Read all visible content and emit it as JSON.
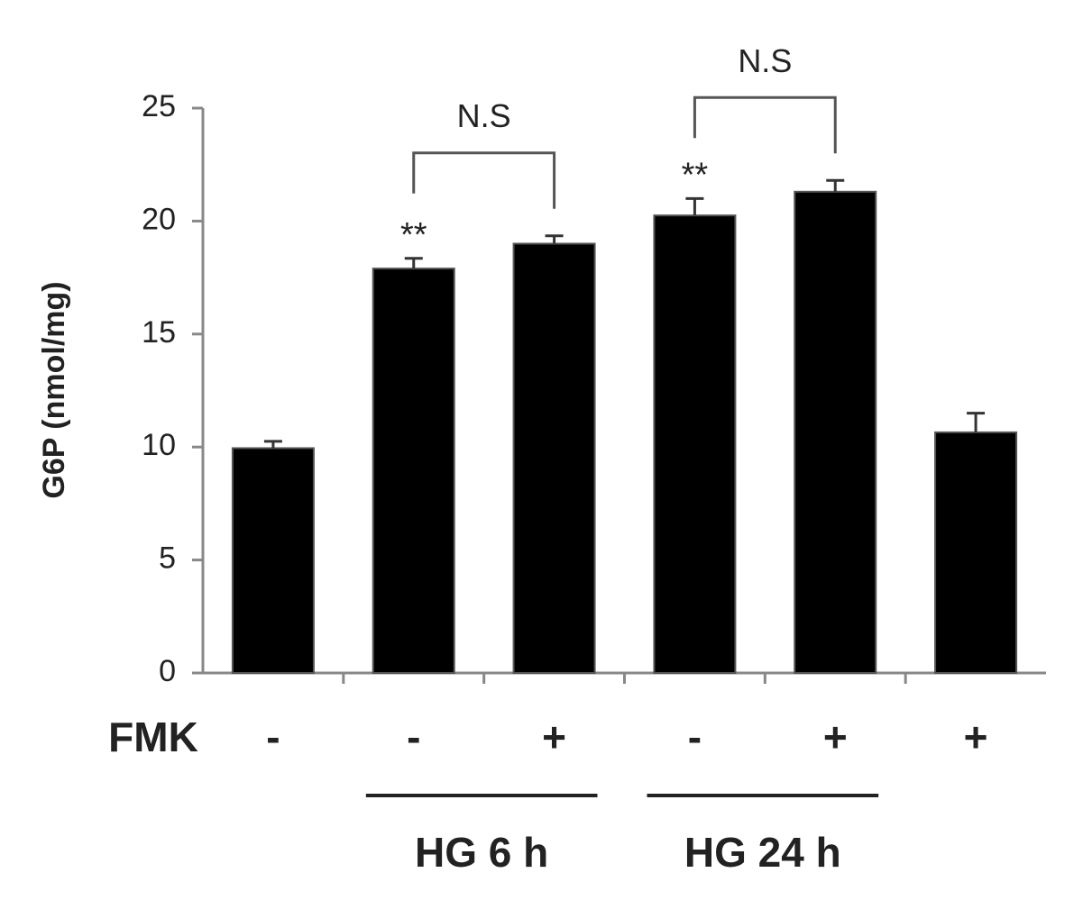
{
  "chart_data": {
    "type": "bar",
    "y_label": "G6P (nmol/mg)",
    "row_label": "FMK",
    "categories": [
      "-",
      "-",
      "+",
      "-",
      "+",
      "+"
    ],
    "values": [
      9.95,
      17.9,
      19.0,
      20.25,
      21.3,
      10.65
    ],
    "errors": [
      0.3,
      0.45,
      0.35,
      0.75,
      0.5,
      0.85
    ],
    "color": "#000000",
    "ylim": [
      0,
      25
    ],
    "yticks": [
      0,
      5,
      10,
      15,
      20,
      25
    ],
    "groups": [
      {
        "label": "HG 6 h",
        "from": 1,
        "to": 2
      },
      {
        "label": "HG 24 h",
        "from": 3,
        "to": 4
      }
    ],
    "annotations": [
      {
        "text": "**",
        "category": 1
      },
      {
        "text": "**",
        "category": 3
      }
    ],
    "brackets": [
      {
        "text": "N.S",
        "from": 1,
        "to": 2
      },
      {
        "text": "N.S",
        "from": 3,
        "to": 4
      }
    ]
  }
}
